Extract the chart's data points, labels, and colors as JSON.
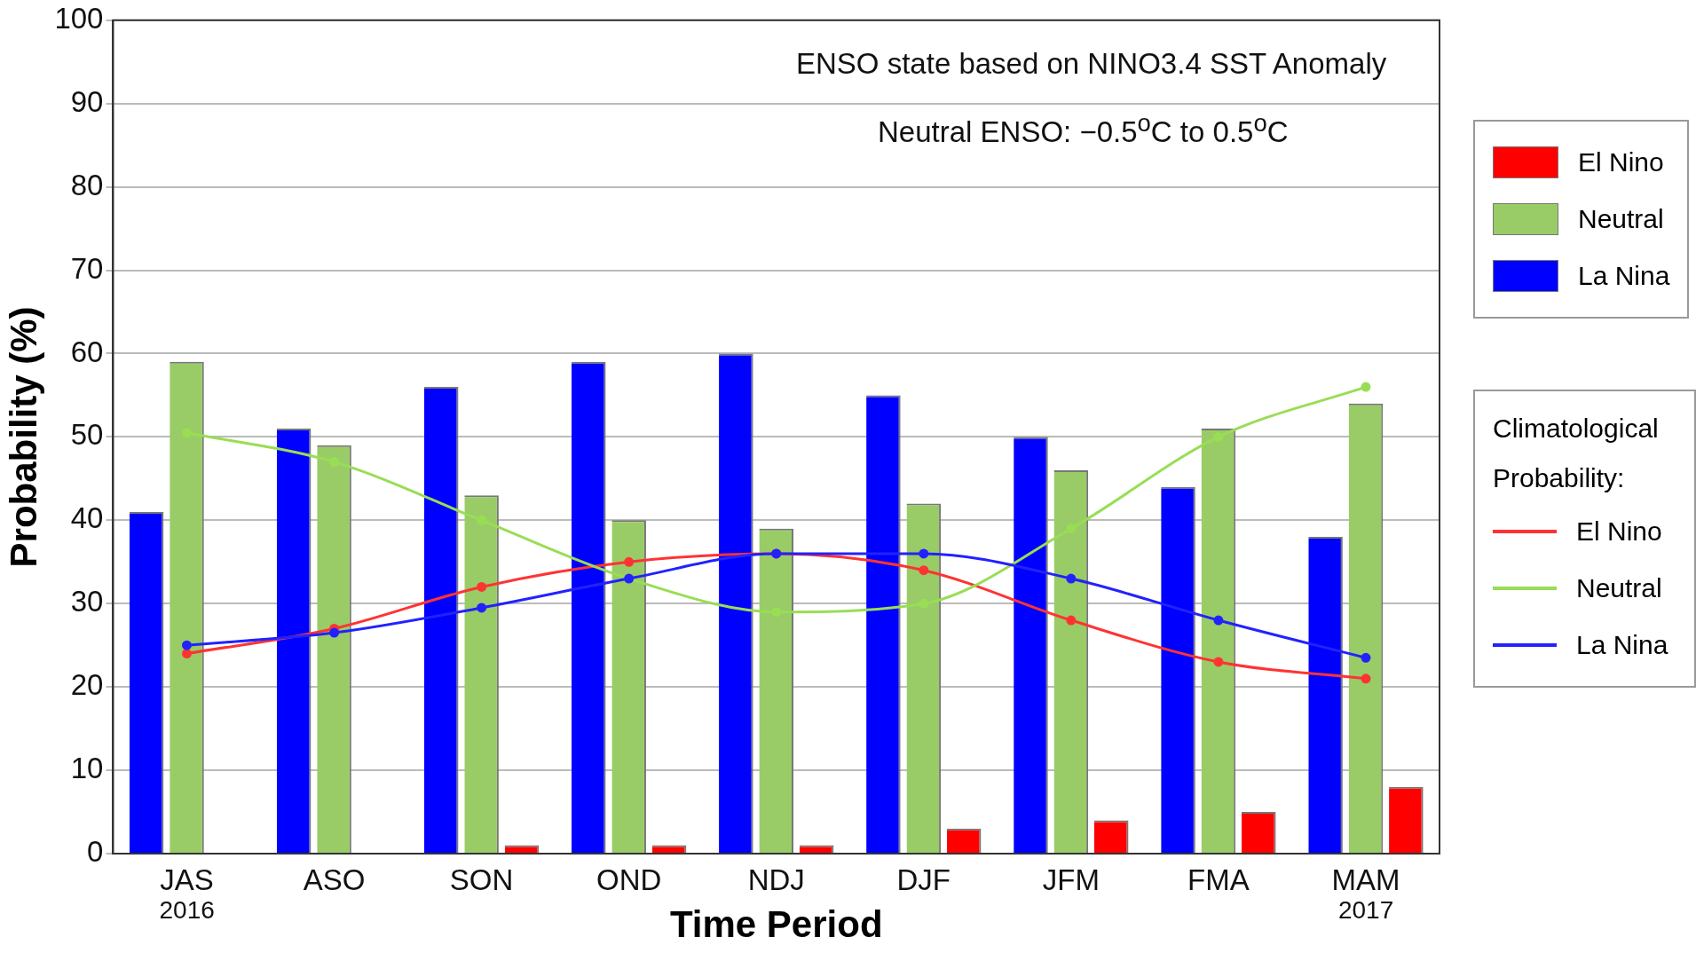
{
  "chart_data": {
    "type": "bar",
    "xlabel": "Time Period",
    "ylabel": "Probability (%)",
    "legend_title": "Climatological Probability:",
    "categories": [
      "JAS",
      "ASO",
      "SON",
      "OND",
      "NDJ",
      "DJF",
      "JFM",
      "FMA",
      "MAM"
    ],
    "series": [
      {
        "name": "La Nina",
        "color": "#0000ff",
        "values": [
          41,
          51,
          56,
          59,
          60,
          55,
          50,
          44,
          38
        ]
      },
      {
        "name": "Neutral",
        "color": "#99cc66",
        "values": [
          59,
          49,
          43,
          40,
          39,
          42,
          46,
          51,
          54
        ]
      },
      {
        "name": "El Nino",
        "color": "#ff0000",
        "values": [
          0,
          0,
          1,
          1,
          1,
          3,
          4,
          5,
          8
        ]
      },
      {
        "name": "El Nino",
        "type": "line",
        "color": "#ff3333",
        "values": [
          24,
          27,
          32,
          35,
          36,
          34,
          28,
          23,
          21
        ]
      },
      {
        "name": "Neutral",
        "type": "line",
        "color": "#99dd55",
        "values": [
          50.5,
          47,
          40,
          33,
          29,
          30,
          39,
          50,
          56
        ]
      },
      {
        "name": "La Nina",
        "type": "line",
        "color": "#2222ff",
        "values": [
          25,
          26.5,
          29.5,
          33,
          36,
          36,
          33,
          28,
          23.5
        ]
      }
    ],
    "ylim": [
      0,
      100
    ],
    "yticks": [
      0,
      10,
      20,
      30,
      40,
      50,
      60,
      70,
      80,
      90,
      100
    ],
    "grid": "y",
    "legend": "right",
    "marker": "circle",
    "annotations": [
      "ENSO state based on NINO3.4 SST Anomaly",
      "Neutral ENSO: −0.5$^{o}$C to 0.5$^{o}$C",
      "2016",
      "2017"
    ]
  }
}
